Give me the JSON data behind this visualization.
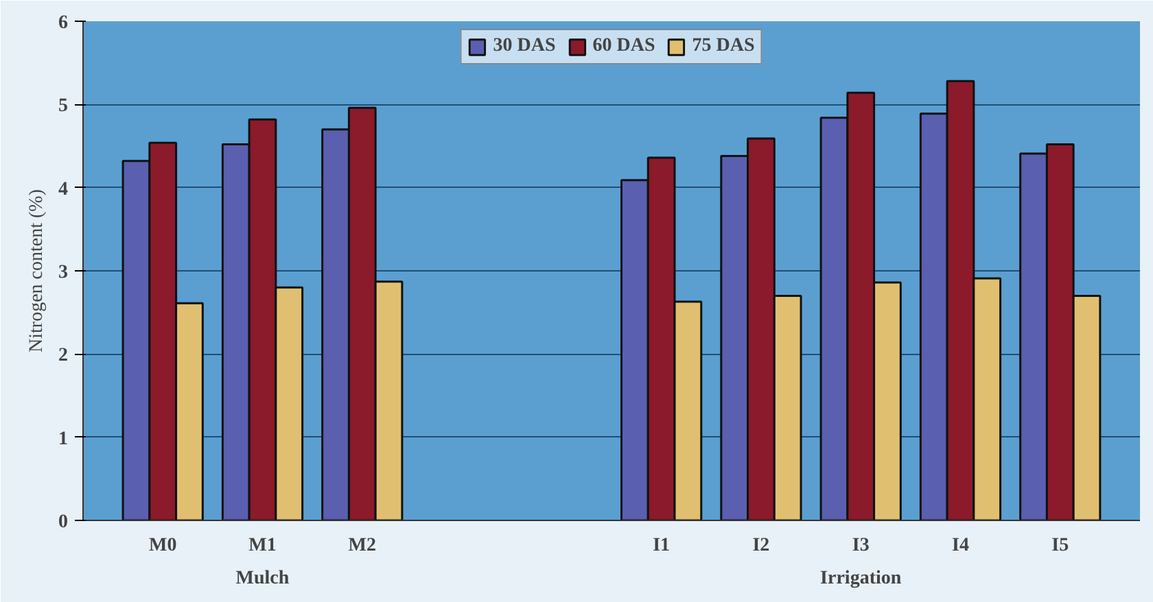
{
  "chart_data": {
    "type": "bar",
    "ylabel": "Nitrogen content (%)",
    "categories": [
      "M0",
      "M1",
      "M2",
      null,
      null,
      "I1",
      "I2",
      "I3",
      "I4",
      "I5"
    ],
    "series": [
      {
        "name": "30 DAS",
        "color": "#5a5fb0",
        "values": [
          4.32,
          4.52,
          4.7,
          null,
          null,
          4.09,
          4.38,
          4.84,
          4.89,
          4.41
        ]
      },
      {
        "name": "60 DAS",
        "color": "#8b1a2a",
        "values": [
          4.54,
          4.82,
          4.96,
          null,
          null,
          4.36,
          4.59,
          5.14,
          5.28,
          4.52
        ]
      },
      {
        "name": "75 DAS",
        "color": "#e0c070",
        "values": [
          2.61,
          2.8,
          2.87,
          null,
          null,
          2.63,
          2.7,
          2.86,
          2.91,
          2.7
        ]
      }
    ],
    "annotations": [
      "Mulch",
      "Irrigation"
    ],
    "ylim": [
      0,
      6
    ],
    "yticks": [
      0,
      1,
      2,
      3,
      4,
      5,
      6
    ],
    "grid": "y",
    "legend": "top"
  }
}
